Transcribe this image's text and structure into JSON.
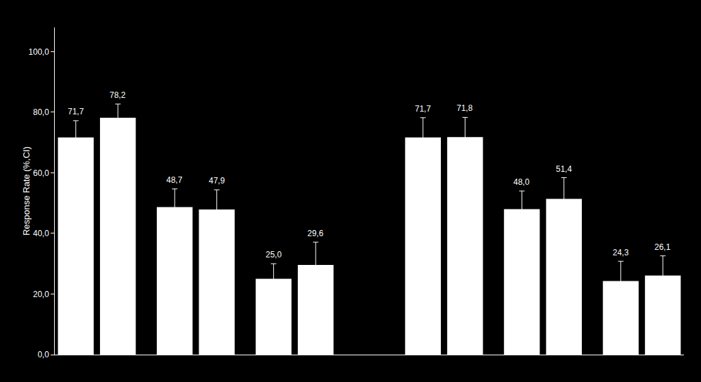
{
  "chart_data": {
    "type": "bar",
    "ylabel": "Response Rate (%,CI)",
    "categories": [
      null,
      null,
      null,
      null,
      null,
      null,
      null,
      null,
      null,
      null,
      null,
      null
    ],
    "values": [
      71.7,
      78.2,
      48.7,
      47.9,
      25.0,
      29.6,
      71.7,
      71.8,
      48.0,
      51.4,
      24.3,
      26.1
    ],
    "value_labels": [
      "71,7",
      "78,2",
      "48,7",
      "47,9",
      "25,0",
      "29,6",
      "71,7",
      "71,8",
      "48,0",
      "51,4",
      "24,3",
      "26,1"
    ],
    "errors": [
      5.5,
      4.5,
      6.0,
      6.5,
      5.0,
      7.5,
      6.5,
      6.5,
      6.0,
      7.0,
      6.5,
      6.5
    ],
    "color": "#ffffff",
    "ylim": [
      0,
      108
    ],
    "yticks": [
      {
        "value": 0,
        "label": "0,0"
      },
      {
        "value": 20,
        "label": "20,0"
      },
      {
        "value": 40,
        "label": "40,0"
      },
      {
        "value": 60,
        "label": "60,0"
      },
      {
        "value": 80,
        "label": "80,0"
      },
      {
        "value": 100,
        "label": "100,0"
      }
    ],
    "grid": false,
    "data_labels": true,
    "tick_labels": "y"
  }
}
